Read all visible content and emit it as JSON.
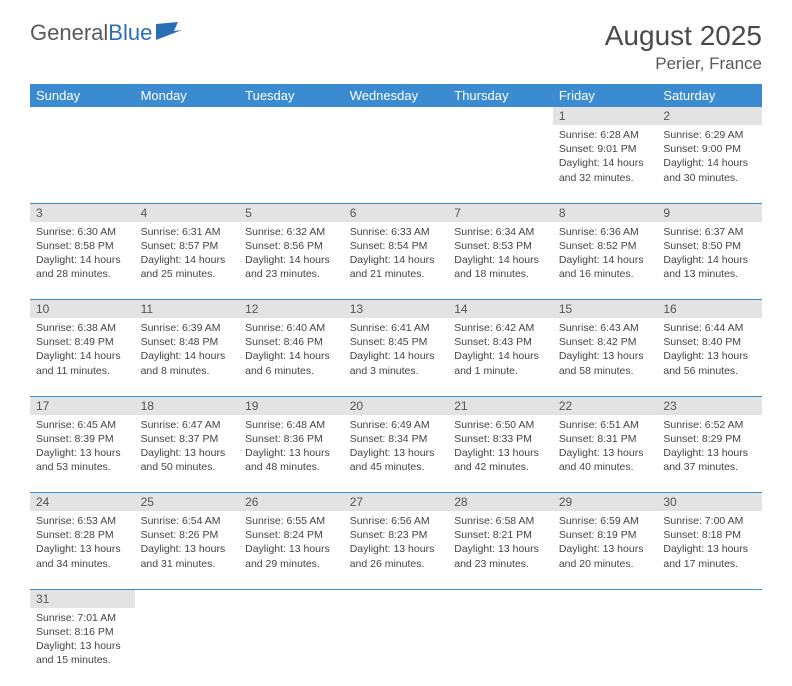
{
  "logo": {
    "part1": "General",
    "part2": "Blue"
  },
  "title": "August 2025",
  "location": "Perier, France",
  "day_headers": [
    "Sunday",
    "Monday",
    "Tuesday",
    "Wednesday",
    "Thursday",
    "Friday",
    "Saturday"
  ],
  "colors": {
    "header_bg": "#3b8bd0",
    "header_text": "#ffffff",
    "cell_border": "#3b8bd0",
    "daynum_bg": "#e3e3e3",
    "text": "#444444"
  },
  "weeks": [
    [
      null,
      null,
      null,
      null,
      null,
      {
        "n": "1",
        "sunrise": "Sunrise: 6:28 AM",
        "sunset": "Sunset: 9:01 PM",
        "daylight": "Daylight: 14 hours and 32 minutes."
      },
      {
        "n": "2",
        "sunrise": "Sunrise: 6:29 AM",
        "sunset": "Sunset: 9:00 PM",
        "daylight": "Daylight: 14 hours and 30 minutes."
      }
    ],
    [
      {
        "n": "3",
        "sunrise": "Sunrise: 6:30 AM",
        "sunset": "Sunset: 8:58 PM",
        "daylight": "Daylight: 14 hours and 28 minutes."
      },
      {
        "n": "4",
        "sunrise": "Sunrise: 6:31 AM",
        "sunset": "Sunset: 8:57 PM",
        "daylight": "Daylight: 14 hours and 25 minutes."
      },
      {
        "n": "5",
        "sunrise": "Sunrise: 6:32 AM",
        "sunset": "Sunset: 8:56 PM",
        "daylight": "Daylight: 14 hours and 23 minutes."
      },
      {
        "n": "6",
        "sunrise": "Sunrise: 6:33 AM",
        "sunset": "Sunset: 8:54 PM",
        "daylight": "Daylight: 14 hours and 21 minutes."
      },
      {
        "n": "7",
        "sunrise": "Sunrise: 6:34 AM",
        "sunset": "Sunset: 8:53 PM",
        "daylight": "Daylight: 14 hours and 18 minutes."
      },
      {
        "n": "8",
        "sunrise": "Sunrise: 6:36 AM",
        "sunset": "Sunset: 8:52 PM",
        "daylight": "Daylight: 14 hours and 16 minutes."
      },
      {
        "n": "9",
        "sunrise": "Sunrise: 6:37 AM",
        "sunset": "Sunset: 8:50 PM",
        "daylight": "Daylight: 14 hours and 13 minutes."
      }
    ],
    [
      {
        "n": "10",
        "sunrise": "Sunrise: 6:38 AM",
        "sunset": "Sunset: 8:49 PM",
        "daylight": "Daylight: 14 hours and 11 minutes."
      },
      {
        "n": "11",
        "sunrise": "Sunrise: 6:39 AM",
        "sunset": "Sunset: 8:48 PM",
        "daylight": "Daylight: 14 hours and 8 minutes."
      },
      {
        "n": "12",
        "sunrise": "Sunrise: 6:40 AM",
        "sunset": "Sunset: 8:46 PM",
        "daylight": "Daylight: 14 hours and 6 minutes."
      },
      {
        "n": "13",
        "sunrise": "Sunrise: 6:41 AM",
        "sunset": "Sunset: 8:45 PM",
        "daylight": "Daylight: 14 hours and 3 minutes."
      },
      {
        "n": "14",
        "sunrise": "Sunrise: 6:42 AM",
        "sunset": "Sunset: 8:43 PM",
        "daylight": "Daylight: 14 hours and 1 minute."
      },
      {
        "n": "15",
        "sunrise": "Sunrise: 6:43 AM",
        "sunset": "Sunset: 8:42 PM",
        "daylight": "Daylight: 13 hours and 58 minutes."
      },
      {
        "n": "16",
        "sunrise": "Sunrise: 6:44 AM",
        "sunset": "Sunset: 8:40 PM",
        "daylight": "Daylight: 13 hours and 56 minutes."
      }
    ],
    [
      {
        "n": "17",
        "sunrise": "Sunrise: 6:45 AM",
        "sunset": "Sunset: 8:39 PM",
        "daylight": "Daylight: 13 hours and 53 minutes."
      },
      {
        "n": "18",
        "sunrise": "Sunrise: 6:47 AM",
        "sunset": "Sunset: 8:37 PM",
        "daylight": "Daylight: 13 hours and 50 minutes."
      },
      {
        "n": "19",
        "sunrise": "Sunrise: 6:48 AM",
        "sunset": "Sunset: 8:36 PM",
        "daylight": "Daylight: 13 hours and 48 minutes."
      },
      {
        "n": "20",
        "sunrise": "Sunrise: 6:49 AM",
        "sunset": "Sunset: 8:34 PM",
        "daylight": "Daylight: 13 hours and 45 minutes."
      },
      {
        "n": "21",
        "sunrise": "Sunrise: 6:50 AM",
        "sunset": "Sunset: 8:33 PM",
        "daylight": "Daylight: 13 hours and 42 minutes."
      },
      {
        "n": "22",
        "sunrise": "Sunrise: 6:51 AM",
        "sunset": "Sunset: 8:31 PM",
        "daylight": "Daylight: 13 hours and 40 minutes."
      },
      {
        "n": "23",
        "sunrise": "Sunrise: 6:52 AM",
        "sunset": "Sunset: 8:29 PM",
        "daylight": "Daylight: 13 hours and 37 minutes."
      }
    ],
    [
      {
        "n": "24",
        "sunrise": "Sunrise: 6:53 AM",
        "sunset": "Sunset: 8:28 PM",
        "daylight": "Daylight: 13 hours and 34 minutes."
      },
      {
        "n": "25",
        "sunrise": "Sunrise: 6:54 AM",
        "sunset": "Sunset: 8:26 PM",
        "daylight": "Daylight: 13 hours and 31 minutes."
      },
      {
        "n": "26",
        "sunrise": "Sunrise: 6:55 AM",
        "sunset": "Sunset: 8:24 PM",
        "daylight": "Daylight: 13 hours and 29 minutes."
      },
      {
        "n": "27",
        "sunrise": "Sunrise: 6:56 AM",
        "sunset": "Sunset: 8:23 PM",
        "daylight": "Daylight: 13 hours and 26 minutes."
      },
      {
        "n": "28",
        "sunrise": "Sunrise: 6:58 AM",
        "sunset": "Sunset: 8:21 PM",
        "daylight": "Daylight: 13 hours and 23 minutes."
      },
      {
        "n": "29",
        "sunrise": "Sunrise: 6:59 AM",
        "sunset": "Sunset: 8:19 PM",
        "daylight": "Daylight: 13 hours and 20 minutes."
      },
      {
        "n": "30",
        "sunrise": "Sunrise: 7:00 AM",
        "sunset": "Sunset: 8:18 PM",
        "daylight": "Daylight: 13 hours and 17 minutes."
      }
    ],
    [
      {
        "n": "31",
        "sunrise": "Sunrise: 7:01 AM",
        "sunset": "Sunset: 8:16 PM",
        "daylight": "Daylight: 13 hours and 15 minutes."
      },
      null,
      null,
      null,
      null,
      null,
      null
    ]
  ]
}
